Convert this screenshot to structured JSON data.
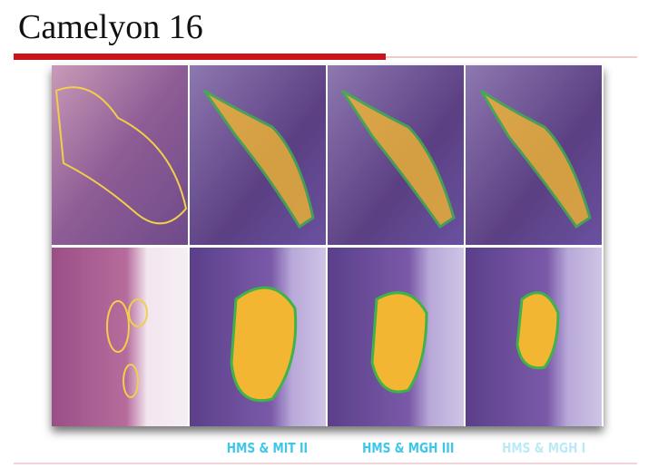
{
  "header": {
    "title": "Camelyon 16"
  },
  "labels": [
    "HMS & MIT II",
    "HMS & MGH III",
    "HMS & MGH I"
  ]
}
